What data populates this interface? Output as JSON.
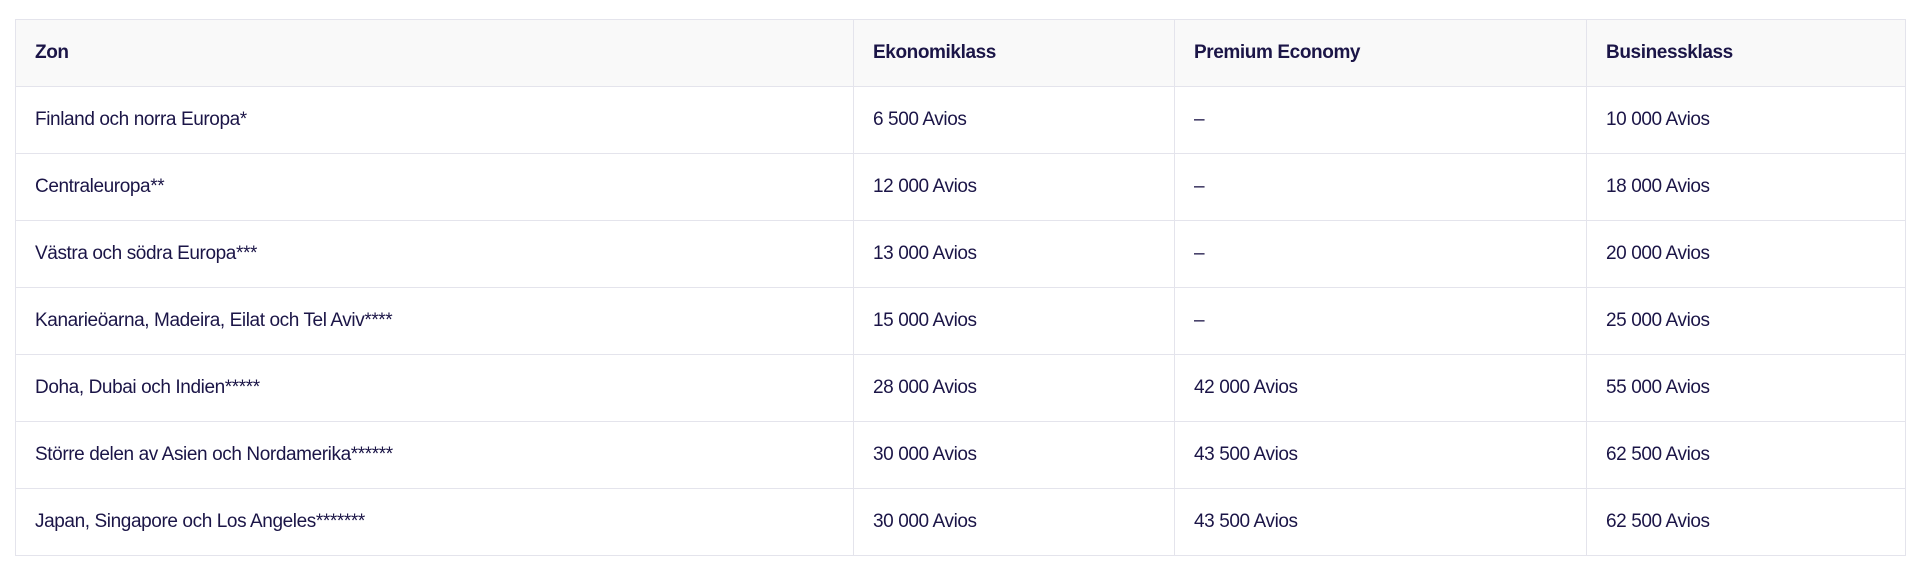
{
  "table": {
    "headers": [
      "Zon",
      "Ekonomiklass",
      "Premium Economy",
      "Businessklass"
    ],
    "rows": [
      [
        "Finland och norra Europa*",
        "6 500 Avios",
        "–",
        "10 000 Avios"
      ],
      [
        "Centraleuropa**",
        "12 000 Avios",
        "–",
        "18 000 Avios"
      ],
      [
        "Västra och södra Europa***",
        "13 000 Avios",
        "–",
        "20 000 Avios"
      ],
      [
        "Kanarieöarna, Madeira, Eilat och Tel Aviv****",
        "15 000 Avios",
        "–",
        "25 000 Avios"
      ],
      [
        "Doha, Dubai och Indien*****",
        "28 000 Avios",
        "42 000 Avios",
        "55 000 Avios"
      ],
      [
        "Större delen av Asien och Nordamerika******",
        "30 000 Avios",
        "43 500 Avios",
        "62 500 Avios"
      ],
      [
        "Japan, Singapore och Los Angeles*******",
        "30 000 Avios",
        "43 500 Avios",
        "62 500 Avios"
      ]
    ]
  }
}
